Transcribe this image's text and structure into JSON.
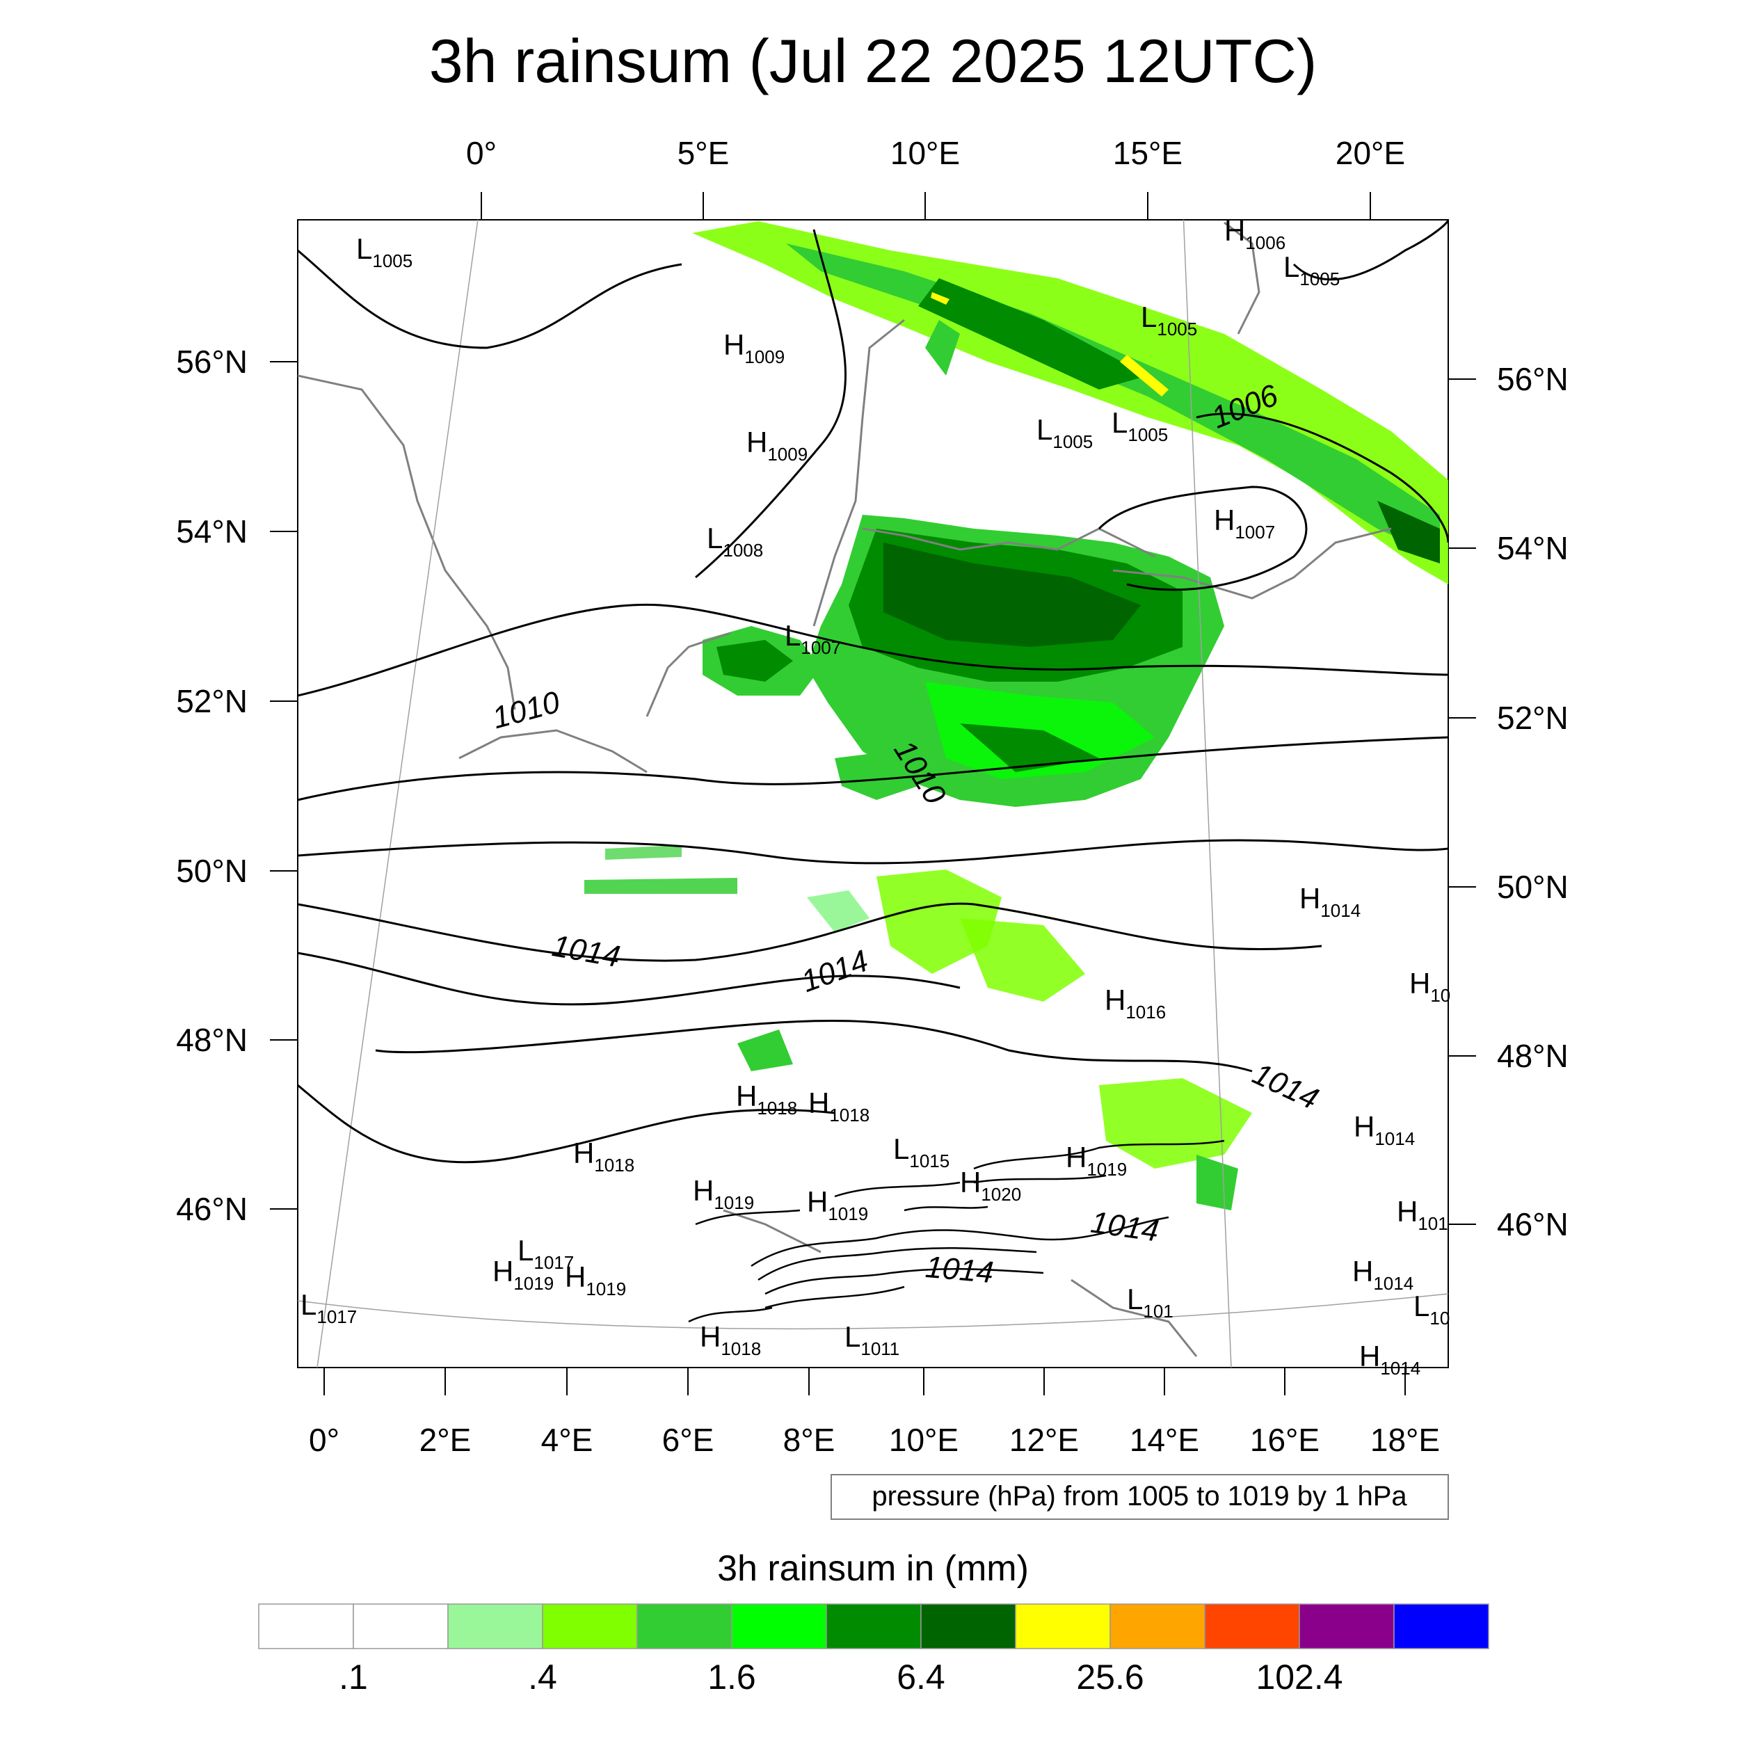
{
  "title": "3h rainsum (Jul 22 2025 12UTC)",
  "top_axis_labels": [
    "0°",
    "5°E",
    "10°E",
    "15°E",
    "20°E"
  ],
  "bottom_axis_labels": [
    "0°",
    "2°E",
    "4°E",
    "6°E",
    "8°E",
    "10°E",
    "12°E",
    "14°E",
    "16°E",
    "18°E"
  ],
  "left_axis_labels": [
    "56°N",
    "54°N",
    "52°N",
    "50°N",
    "48°N",
    "46°N"
  ],
  "right_axis_labels": [
    "56°N",
    "54°N",
    "52°N",
    "50°N",
    "48°N",
    "46°N"
  ],
  "pressure_centers": [
    {
      "type": "L",
      "value": "1005"
    },
    {
      "type": "H",
      "value": "1006"
    },
    {
      "type": "L",
      "value": "1005"
    },
    {
      "type": "L",
      "value": "1005"
    },
    {
      "type": "H",
      "value": "1009"
    },
    {
      "type": "H",
      "value": "1009"
    },
    {
      "type": "L",
      "value": "1005"
    },
    {
      "type": "L",
      "value": "1005"
    },
    {
      "type": "L",
      "value": "1008"
    },
    {
      "type": "H",
      "value": "1007"
    },
    {
      "type": "L",
      "value": "1007"
    },
    {
      "type": "H",
      "value": "1014"
    },
    {
      "type": "H",
      "value": "10"
    },
    {
      "type": "H",
      "value": "1016"
    },
    {
      "type": "H",
      "value": "1018"
    },
    {
      "type": "H",
      "value": "1018"
    },
    {
      "type": "H",
      "value": "1018"
    },
    {
      "type": "H",
      "value": "1014"
    },
    {
      "type": "L",
      "value": "1015"
    },
    {
      "type": "H",
      "value": "1019"
    },
    {
      "type": "H",
      "value": "1020"
    },
    {
      "type": "H",
      "value": "1019"
    },
    {
      "type": "H",
      "value": "1019"
    },
    {
      "type": "H",
      "value": "101"
    },
    {
      "type": "L",
      "value": "1017"
    },
    {
      "type": "H",
      "value": "1019"
    },
    {
      "type": "H",
      "value": "1019"
    },
    {
      "type": "H",
      "value": "1014"
    },
    {
      "type": "L",
      "value": "1017"
    },
    {
      "type": "L",
      "value": "101"
    },
    {
      "type": "L",
      "value": "10"
    },
    {
      "type": "H",
      "value": "1018"
    },
    {
      "type": "L",
      "value": "1011"
    },
    {
      "type": "H",
      "value": "1014"
    }
  ],
  "isobar_labels": [
    "1006",
    "1010",
    "1010",
    "1014",
    "1014",
    "1014",
    "1014",
    "1014"
  ],
  "contour_note": "pressure (hPa) from 1005 to 1019 by 1 hPa",
  "colorbar": {
    "title": "3h rainsum in (mm)",
    "labels": [
      ".1",
      ".4",
      "1.6",
      "6.4",
      "25.6",
      "102.4"
    ],
    "colors": [
      "#ffffff",
      "#ffffff",
      "#99f799",
      "#7fff00",
      "#32cd32",
      "#00ff00",
      "#008b00",
      "#006400",
      "#ffff00",
      "#ffa500",
      "#ff4500",
      "#8b008b",
      "#0000ff"
    ]
  }
}
